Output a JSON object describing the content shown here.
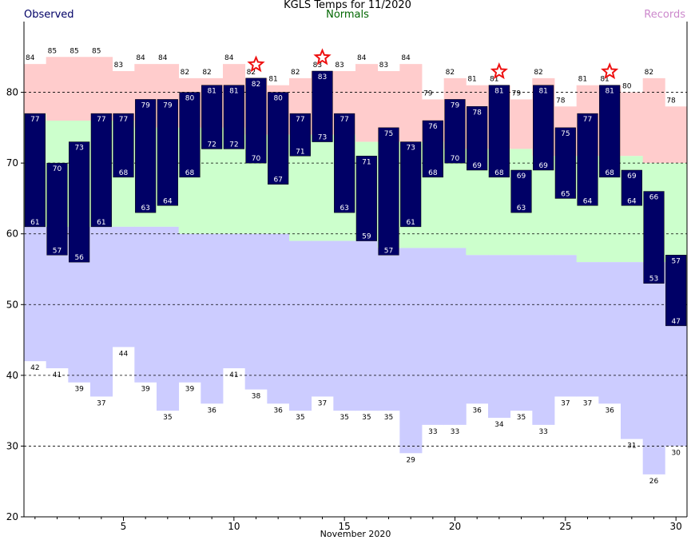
{
  "header": {
    "title": "KGLS Temps for 11/2020",
    "observed_label": "Observed",
    "normals_label": "Normals",
    "records_label": "Records"
  },
  "colors": {
    "observed": "#000066",
    "normals_fill": "#ccffcc",
    "normals_text": "#006600",
    "record_high_fill": "#ffcccc",
    "record_low_fill": "#ccccff",
    "records_text": "#cc88cc",
    "star": "#ee1111"
  },
  "chart_data": {
    "type": "bar",
    "title": "KGLS Temps for 11/2020",
    "xlabel": "November 2020",
    "ylabel": "",
    "ylim": [
      20,
      90
    ],
    "yticks": [
      20,
      30,
      40,
      50,
      60,
      70,
      80
    ],
    "xticks": [
      5,
      10,
      15,
      20,
      25,
      30
    ],
    "grid": "dashed horizontal at 30, 40, 60, 70, 80",
    "days": [
      1,
      2,
      3,
      4,
      5,
      6,
      7,
      8,
      9,
      10,
      11,
      12,
      13,
      14,
      15,
      16,
      17,
      18,
      19,
      20,
      21,
      22,
      23,
      24,
      25,
      26,
      27,
      28,
      29,
      30
    ],
    "observed_high": [
      77,
      70,
      73,
      77,
      77,
      79,
      79,
      80,
      81,
      81,
      82,
      80,
      77,
      83,
      77,
      71,
      75,
      73,
      76,
      79,
      78,
      81,
      69,
      81,
      75,
      77,
      81,
      69,
      66,
      57
    ],
    "observed_low": [
      61,
      57,
      56,
      61,
      68,
      63,
      64,
      68,
      72,
      72,
      70,
      67,
      71,
      73,
      63,
      59,
      57,
      61,
      68,
      70,
      69,
      68,
      63,
      69,
      65,
      64,
      68,
      64,
      53,
      47
    ],
    "normal_high": [
      77,
      76,
      76,
      76,
      76,
      75,
      75,
      75,
      75,
      75,
      74,
      74,
      74,
      74,
      74,
      73,
      73,
      73,
      73,
      72,
      72,
      72,
      72,
      71,
      71,
      71,
      71,
      71,
      70,
      70
    ],
    "normal_low": [
      61,
      61,
      61,
      61,
      61,
      61,
      61,
      60,
      60,
      60,
      60,
      60,
      59,
      59,
      59,
      59,
      58,
      58,
      58,
      58,
      57,
      57,
      57,
      57,
      57,
      56,
      56,
      56,
      56,
      56
    ],
    "record_high": [
      84,
      85,
      85,
      85,
      83,
      84,
      84,
      82,
      82,
      84,
      82,
      81,
      82,
      83,
      83,
      84,
      83,
      84,
      79,
      82,
      81,
      81,
      79,
      82,
      78,
      81,
      81,
      80,
      82,
      78
    ],
    "record_low": [
      42,
      41,
      39,
      37,
      44,
      39,
      35,
      39,
      36,
      41,
      38,
      36,
      35,
      37,
      35,
      35,
      35,
      29,
      33,
      33,
      36,
      34,
      35,
      33,
      37,
      37,
      36,
      31,
      26,
      30
    ],
    "record_high_set_days": [
      11,
      14,
      22,
      27
    ]
  }
}
